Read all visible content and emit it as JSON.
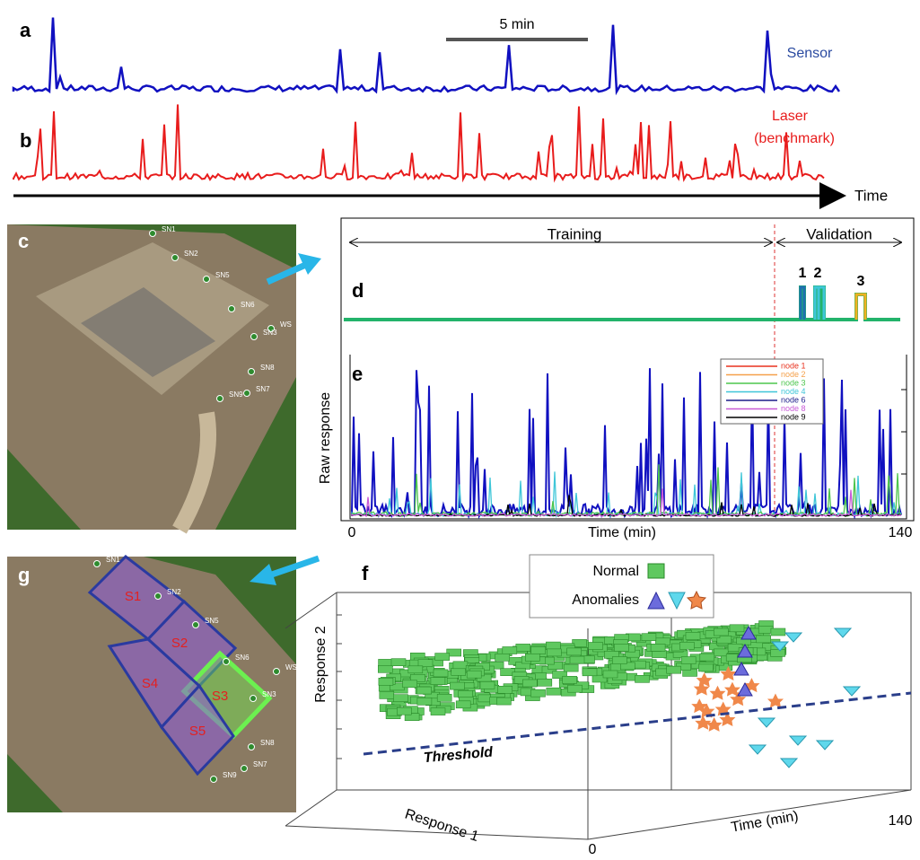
{
  "panels": {
    "a": {
      "label": "a",
      "scale_bar": "5 min",
      "trace_label": "Sensor"
    },
    "b": {
      "label": "b",
      "trace_label": [
        "Laser",
        "(benchmark)"
      ]
    },
    "time_axis": "Time",
    "c": {
      "label": "c",
      "sensors": [
        "SN1",
        "SN2",
        "SN5",
        "SN6",
        "WS",
        "SN3",
        "SN8",
        "SN7",
        "SN9"
      ]
    },
    "d": {
      "label": "d",
      "training": "Training",
      "validation": "Validation",
      "events": [
        "1",
        "2",
        "3"
      ]
    },
    "e": {
      "label": "e",
      "y_label": "Raw response",
      "x_label": "Time (min)",
      "x_ticks": [
        "0",
        "140"
      ],
      "legend": [
        {
          "name": "node 1",
          "color": "#e8321e"
        },
        {
          "name": "node 2",
          "color": "#f5a04a"
        },
        {
          "name": "node 3",
          "color": "#4dc54d"
        },
        {
          "name": "node 4",
          "color": "#3fc6d8"
        },
        {
          "name": "node 6",
          "color": "#1c1c8a"
        },
        {
          "name": "node 8",
          "color": "#c85ad6"
        },
        {
          "name": "node 9",
          "color": "#000000"
        }
      ]
    },
    "f": {
      "label": "f",
      "legend": [
        "Normal",
        "Anomalies"
      ],
      "threshold": "Threshold",
      "y_label": "Response 2",
      "x_label": "Response 1",
      "z_label": "Time (min)",
      "z_ticks": [
        "0",
        "140"
      ]
    },
    "g": {
      "label": "g",
      "zones": [
        "S1",
        "S2",
        "S3",
        "S4",
        "S5"
      ],
      "sensors": [
        "SN1",
        "SN2",
        "SN5",
        "SN6",
        "WS",
        "SN3",
        "SN8",
        "SN7",
        "SN9"
      ]
    }
  }
}
